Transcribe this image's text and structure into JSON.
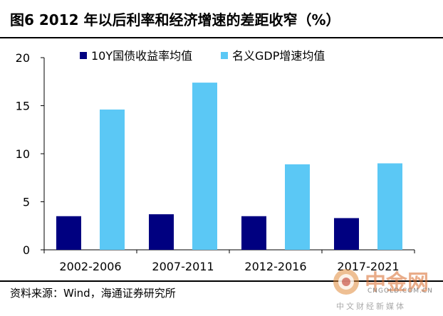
{
  "title": "图6  2012 年以后利率和经济增速的差距收窄（%）",
  "chart_data": {
    "type": "bar",
    "categories": [
      "2002-2006",
      "2007-2011",
      "2012-2016",
      "2017-2021"
    ],
    "series": [
      {
        "name": "10Y国债收益率均值",
        "values": [
          3.5,
          3.7,
          3.5,
          3.3
        ],
        "color": "#000080"
      },
      {
        "name": "名义GDP增速均值",
        "values": [
          14.6,
          17.4,
          8.9,
          9.0
        ],
        "color": "#5bc8f5"
      }
    ],
    "ylim": [
      0,
      20
    ],
    "yticks": [
      0,
      5,
      10,
      15,
      20
    ],
    "xlabel": "",
    "ylabel": "",
    "legend": "top"
  },
  "source": "资料来源：Wind，海通证券研究所",
  "watermark": {
    "name": "中金网",
    "domain": "CNGOLD.COM.CN",
    "tagline": "中文财经新媒体"
  }
}
